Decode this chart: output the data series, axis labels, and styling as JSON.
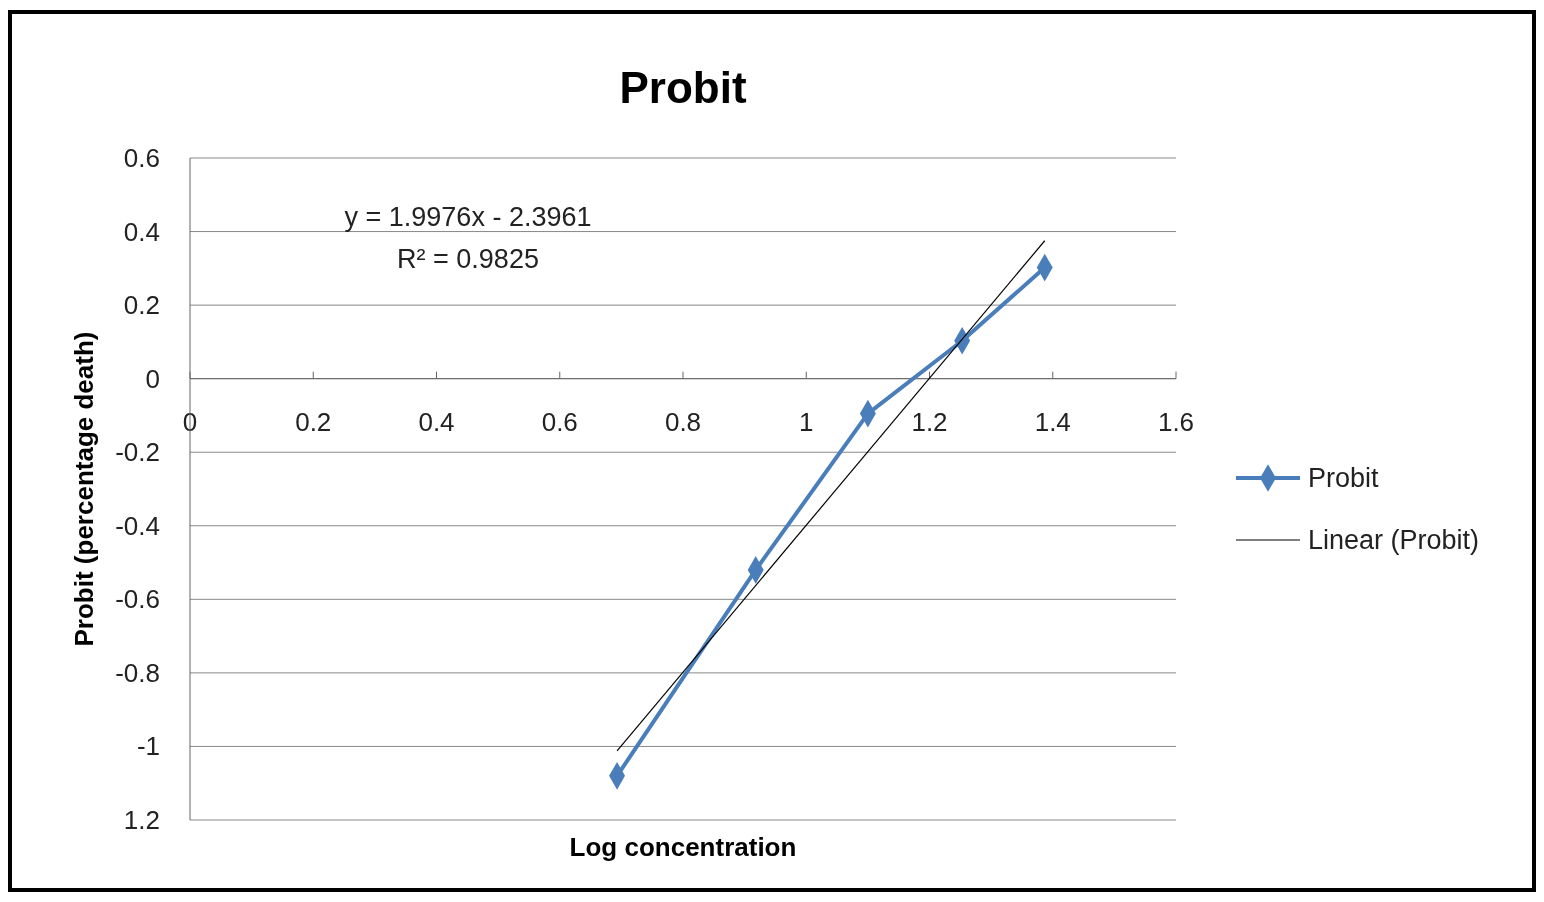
{
  "chart_data": {
    "type": "line",
    "title": "Probit",
    "xlabel": "Log concentration",
    "ylabel": "Probit (percentage death)",
    "xlim": [
      0,
      1.6
    ],
    "xticks": [
      0,
      0.2,
      0.4,
      0.6,
      0.8,
      1,
      1.2,
      1.4,
      1.6
    ],
    "ylim": [
      -1.2,
      0.6
    ],
    "yticks": [
      {
        "value": -1.2,
        "label": "1.2"
      },
      -1,
      -0.8,
      -0.6,
      -0.4,
      -0.2,
      0,
      0.2,
      0.4,
      0.6
    ],
    "grid": "y",
    "legend": "right",
    "annotations": [
      "y = 1.9976x - 2.3961",
      "R² = 0.9825"
    ],
    "series": [
      {
        "name": "Probit",
        "color": "#4a7ebb",
        "marker": "diamond",
        "x": [
          0.693,
          0.918,
          1.1,
          1.253,
          1.387
        ],
        "values": [
          -1.08,
          -0.52,
          -0.095,
          0.103,
          0.302
        ]
      },
      {
        "name": "Linear (Probit)",
        "color": "#000000",
        "marker": "none",
        "x": [
          0.693,
          1.387
        ],
        "values": [
          -1.012,
          0.375
        ]
      }
    ]
  }
}
